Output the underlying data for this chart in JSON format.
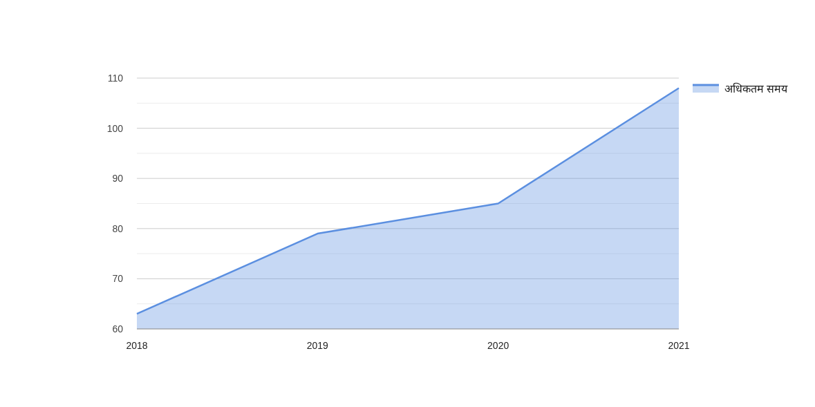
{
  "chart_data": {
    "type": "area",
    "categories": [
      "2018",
      "2019",
      "2020",
      "2021"
    ],
    "series": [
      {
        "name": "अधिकतम समय",
        "color": "#5b8fe0",
        "values": [
          63,
          79,
          85,
          108
        ]
      }
    ],
    "ylim": [
      60,
      110
    ],
    "yticks": [
      60,
      {
        "value": 65,
        "label": null
      },
      70,
      {
        "value": 75,
        "label": null
      },
      80,
      {
        "value": 85,
        "label": null
      },
      90,
      {
        "value": 95,
        "label": null
      },
      100,
      {
        "value": 105,
        "label": null
      },
      110
    ],
    "grid": "y",
    "legend": "top right"
  }
}
